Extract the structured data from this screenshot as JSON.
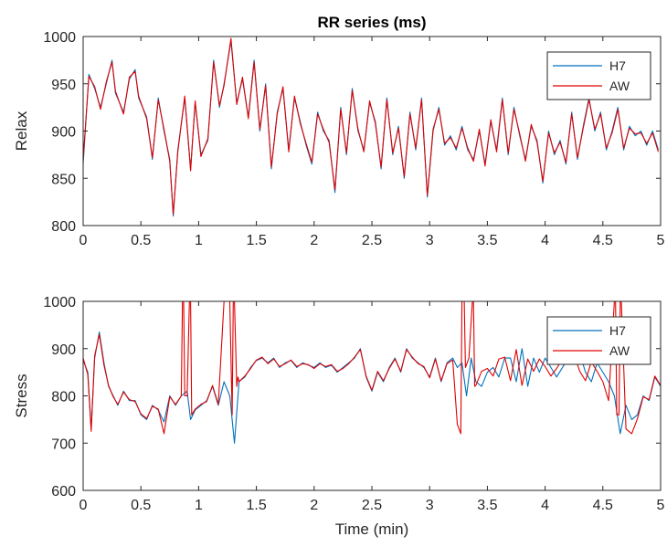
{
  "figure": {
    "title": "RR series (ms)",
    "xlabel": "Time (min)"
  },
  "colors": {
    "H7": "#0072BD",
    "AW": "#E00000",
    "axis": "#262626"
  },
  "chart_data": [
    {
      "type": "line",
      "title": "RR series (ms)",
      "xlabel": "",
      "ylabel": "Relax",
      "xlim": [
        0,
        5
      ],
      "ylim": [
        800,
        1000
      ],
      "xticks": [
        "0",
        "0.5",
        "1",
        "1.5",
        "2",
        "2.5",
        "3",
        "3.5",
        "4",
        "4.5",
        "5"
      ],
      "yticks": [
        "800",
        "850",
        "900",
        "950",
        "1000"
      ],
      "legend": "top-right",
      "grid": false,
      "series": [
        {
          "name": "H7",
          "color": "#0072BD",
          "x": [
            0,
            0.05,
            0.1,
            0.15,
            0.2,
            0.25,
            0.28,
            0.35,
            0.4,
            0.45,
            0.48,
            0.55,
            0.6,
            0.65,
            0.7,
            0.75,
            0.78,
            0.82,
            0.88,
            0.93,
            0.97,
            1.02,
            1.08,
            1.13,
            1.18,
            1.22,
            1.28,
            1.33,
            1.38,
            1.43,
            1.48,
            1.53,
            1.58,
            1.63,
            1.68,
            1.73,
            1.78,
            1.83,
            1.88,
            1.93,
            1.98,
            2.03,
            2.08,
            2.13,
            2.18,
            2.23,
            2.28,
            2.33,
            2.38,
            2.43,
            2.48,
            2.53,
            2.58,
            2.63,
            2.68,
            2.73,
            2.78,
            2.83,
            2.88,
            2.93,
            2.98,
            3.03,
            3.08,
            3.13,
            3.18,
            3.23,
            3.28,
            3.33,
            3.38,
            3.43,
            3.48,
            3.53,
            3.58,
            3.63,
            3.68,
            3.73,
            3.78,
            3.83,
            3.88,
            3.93,
            3.98,
            4.03,
            4.08,
            4.13,
            4.18,
            4.23,
            4.28,
            4.33,
            4.38,
            4.43,
            4.48,
            4.53,
            4.58,
            4.63,
            4.68,
            4.73,
            4.78,
            4.83,
            4.88,
            4.93,
            4.98
          ],
          "y": [
            865,
            960,
            945,
            925,
            950,
            975,
            940,
            920,
            955,
            965,
            935,
            915,
            870,
            935,
            900,
            870,
            810,
            880,
            935,
            860,
            930,
            875,
            890,
            975,
            925,
            950,
            995,
            930,
            955,
            915,
            975,
            900,
            950,
            860,
            920,
            945,
            880,
            935,
            910,
            885,
            865,
            920,
            900,
            890,
            835,
            925,
            875,
            945,
            900,
            880,
            930,
            910,
            860,
            935,
            875,
            905,
            850,
            920,
            880,
            935,
            830,
            900,
            925,
            885,
            895,
            880,
            905,
            880,
            870,
            900,
            865,
            910,
            880,
            935,
            875,
            925,
            895,
            870,
            905,
            890,
            845,
            900,
            875,
            890,
            865,
            920,
            870,
            905,
            935,
            900,
            920,
            880,
            900,
            925,
            880,
            905,
            895,
            900,
            885,
            900,
            880
          ]
        },
        {
          "name": "AW",
          "color": "#E00000",
          "x": [
            0,
            0.05,
            0.1,
            0.15,
            0.2,
            0.25,
            0.28,
            0.35,
            0.4,
            0.45,
            0.48,
            0.55,
            0.6,
            0.65,
            0.7,
            0.75,
            0.78,
            0.82,
            0.88,
            0.93,
            0.97,
            1.02,
            1.08,
            1.13,
            1.18,
            1.22,
            1.28,
            1.33,
            1.38,
            1.43,
            1.48,
            1.53,
            1.58,
            1.63,
            1.68,
            1.73,
            1.78,
            1.83,
            1.88,
            1.93,
            1.98,
            2.03,
            2.08,
            2.13,
            2.18,
            2.23,
            2.28,
            2.33,
            2.38,
            2.43,
            2.48,
            2.53,
            2.58,
            2.63,
            2.68,
            2.73,
            2.78,
            2.83,
            2.88,
            2.93,
            2.98,
            3.03,
            3.08,
            3.13,
            3.18,
            3.23,
            3.28,
            3.33,
            3.38,
            3.43,
            3.48,
            3.53,
            3.58,
            3.63,
            3.68,
            3.73,
            3.78,
            3.83,
            3.88,
            3.93,
            3.98,
            4.03,
            4.08,
            4.13,
            4.18,
            4.23,
            4.28,
            4.33,
            4.38,
            4.43,
            4.48,
            4.53,
            4.58,
            4.63,
            4.68,
            4.73,
            4.78,
            4.83,
            4.88,
            4.93,
            4.98
          ],
          "y": [
            870,
            958,
            947,
            923,
            952,
            973,
            942,
            918,
            957,
            963,
            937,
            913,
            872,
            933,
            902,
            868,
            812,
            878,
            937,
            858,
            932,
            873,
            892,
            973,
            927,
            948,
            998,
            928,
            957,
            913,
            973,
            902,
            948,
            862,
            918,
            947,
            878,
            937,
            908,
            887,
            867,
            918,
            902,
            888,
            838,
            923,
            877,
            943,
            902,
            878,
            932,
            908,
            862,
            933,
            877,
            903,
            852,
            918,
            882,
            933,
            832,
            902,
            923,
            887,
            893,
            882,
            903,
            882,
            868,
            902,
            863,
            912,
            878,
            933,
            877,
            923,
            897,
            868,
            907,
            888,
            847,
            898,
            877,
            888,
            867,
            918,
            872,
            903,
            933,
            902,
            918,
            882,
            898,
            923,
            882,
            903,
            897,
            898,
            887,
            898,
            878
          ]
        }
      ]
    },
    {
      "type": "line",
      "title": "",
      "xlabel": "Time (min)",
      "ylabel": "Stress",
      "xlim": [
        0,
        5
      ],
      "ylim": [
        600,
        1000
      ],
      "xticks": [
        "0",
        "0.5",
        "1",
        "1.5",
        "2",
        "2.5",
        "3",
        "3.5",
        "4",
        "4.5",
        "5"
      ],
      "yticks": [
        "600",
        "700",
        "800",
        "900",
        "1000"
      ],
      "legend": "top-right",
      "grid": false,
      "series": [
        {
          "name": "H7",
          "color": "#0072BD",
          "x": [
            0,
            0.04,
            0.07,
            0.1,
            0.14,
            0.18,
            0.22,
            0.26,
            0.3,
            0.35,
            0.4,
            0.45,
            0.5,
            0.55,
            0.6,
            0.65,
            0.7,
            0.75,
            0.8,
            0.85,
            0.9,
            0.93,
            0.97,
            1.02,
            1.07,
            1.12,
            1.17,
            1.22,
            1.27,
            1.31,
            1.35,
            1.4,
            1.45,
            1.5,
            1.55,
            1.6,
            1.65,
            1.7,
            1.75,
            1.8,
            1.85,
            1.9,
            1.95,
            2.0,
            2.05,
            2.1,
            2.15,
            2.2,
            2.25,
            2.3,
            2.35,
            2.4,
            2.45,
            2.5,
            2.55,
            2.6,
            2.65,
            2.7,
            2.75,
            2.8,
            2.85,
            2.9,
            2.95,
            3.0,
            3.05,
            3.1,
            3.15,
            3.2,
            3.24,
            3.28,
            3.32,
            3.36,
            3.4,
            3.45,
            3.5,
            3.55,
            3.6,
            3.65,
            3.7,
            3.75,
            3.8,
            3.85,
            3.9,
            3.95,
            4.0,
            4.05,
            4.1,
            4.15,
            4.2,
            4.25,
            4.3,
            4.35,
            4.4,
            4.45,
            4.5,
            4.55,
            4.6,
            4.65,
            4.7,
            4.75,
            4.8,
            4.85,
            4.9,
            4.95,
            5.0
          ],
          "y": [
            875,
            850,
            730,
            880,
            935,
            870,
            820,
            800,
            780,
            810,
            790,
            790,
            760,
            750,
            780,
            770,
            745,
            800,
            780,
            800,
            810,
            750,
            770,
            780,
            790,
            820,
            780,
            830,
            800,
            700,
            830,
            840,
            860,
            875,
            880,
            870,
            880,
            860,
            870,
            875,
            860,
            870,
            865,
            860,
            870,
            860,
            865,
            850,
            860,
            870,
            880,
            900,
            840,
            810,
            850,
            830,
            860,
            880,
            850,
            900,
            880,
            870,
            860,
            840,
            880,
            830,
            870,
            880,
            860,
            870,
            800,
            880,
            830,
            820,
            850,
            860,
            840,
            880,
            880,
            830,
            900,
            820,
            880,
            850,
            880,
            860,
            840,
            860,
            880,
            870,
            890,
            850,
            830,
            870,
            850,
            830,
            800,
            720,
            780,
            750,
            760,
            800,
            790,
            840,
            820
          ]
        },
        {
          "name": "AW",
          "color": "#E00000",
          "x": [
            0,
            0.04,
            0.07,
            0.1,
            0.14,
            0.18,
            0.22,
            0.26,
            0.3,
            0.35,
            0.4,
            0.45,
            0.5,
            0.55,
            0.6,
            0.65,
            0.7,
            0.75,
            0.8,
            0.85,
            0.86,
            0.87,
            0.88,
            0.9,
            0.92,
            0.93,
            0.94,
            0.97,
            1.02,
            1.07,
            1.12,
            1.17,
            1.22,
            1.27,
            1.29,
            1.3,
            1.31,
            1.33,
            1.34,
            1.35,
            1.4,
            1.45,
            1.5,
            1.55,
            1.6,
            1.65,
            1.7,
            1.75,
            1.8,
            1.85,
            1.9,
            1.95,
            2.0,
            2.05,
            2.1,
            2.15,
            2.2,
            2.25,
            2.3,
            2.35,
            2.4,
            2.45,
            2.5,
            2.55,
            2.6,
            2.65,
            2.7,
            2.75,
            2.8,
            2.85,
            2.9,
            2.95,
            3.0,
            3.05,
            3.1,
            3.15,
            3.2,
            3.24,
            3.27,
            3.28,
            3.3,
            3.31,
            3.34,
            3.37,
            3.38,
            3.39,
            3.4,
            3.45,
            3.5,
            3.55,
            3.6,
            3.65,
            3.7,
            3.75,
            3.8,
            3.85,
            3.9,
            3.95,
            4.0,
            4.05,
            4.1,
            4.15,
            4.2,
            4.25,
            4.3,
            4.35,
            4.4,
            4.45,
            4.5,
            4.55,
            4.6,
            4.61,
            4.62,
            4.64,
            4.65,
            4.66,
            4.7,
            4.75,
            4.8,
            4.85,
            4.9,
            4.95,
            5.0
          ],
          "y": [
            880,
            845,
            725,
            885,
            930,
            865,
            822,
            798,
            782,
            808,
            792,
            788,
            762,
            752,
            778,
            772,
            720,
            798,
            782,
            800,
            1000,
            1000,
            800,
            800,
            1000,
            1000,
            760,
            772,
            782,
            788,
            822,
            782,
            1000,
            1000,
            760,
            1000,
            1000,
            820,
            840,
            830,
            842,
            858,
            876,
            882,
            868,
            878,
            862,
            868,
            876,
            862,
            868,
            866,
            858,
            868,
            862,
            866,
            852,
            858,
            868,
            882,
            898,
            842,
            812,
            852,
            832,
            858,
            878,
            852,
            898,
            882,
            868,
            862,
            838,
            878,
            832,
            868,
            876,
            740,
            720,
            1000,
            1000,
            860,
            880,
            1000,
            1000,
            820,
            822,
            852,
            858,
            842,
            878,
            882,
            832,
            898,
            822,
            878,
            852,
            878,
            862,
            842,
            858,
            878,
            872,
            888,
            852,
            832,
            872,
            852,
            830,
            790,
            1000,
            1000,
            760,
            760,
            1000,
            1000,
            730,
            720,
            752,
            798,
            792,
            842,
            822
          ]
        }
      ]
    }
  ]
}
